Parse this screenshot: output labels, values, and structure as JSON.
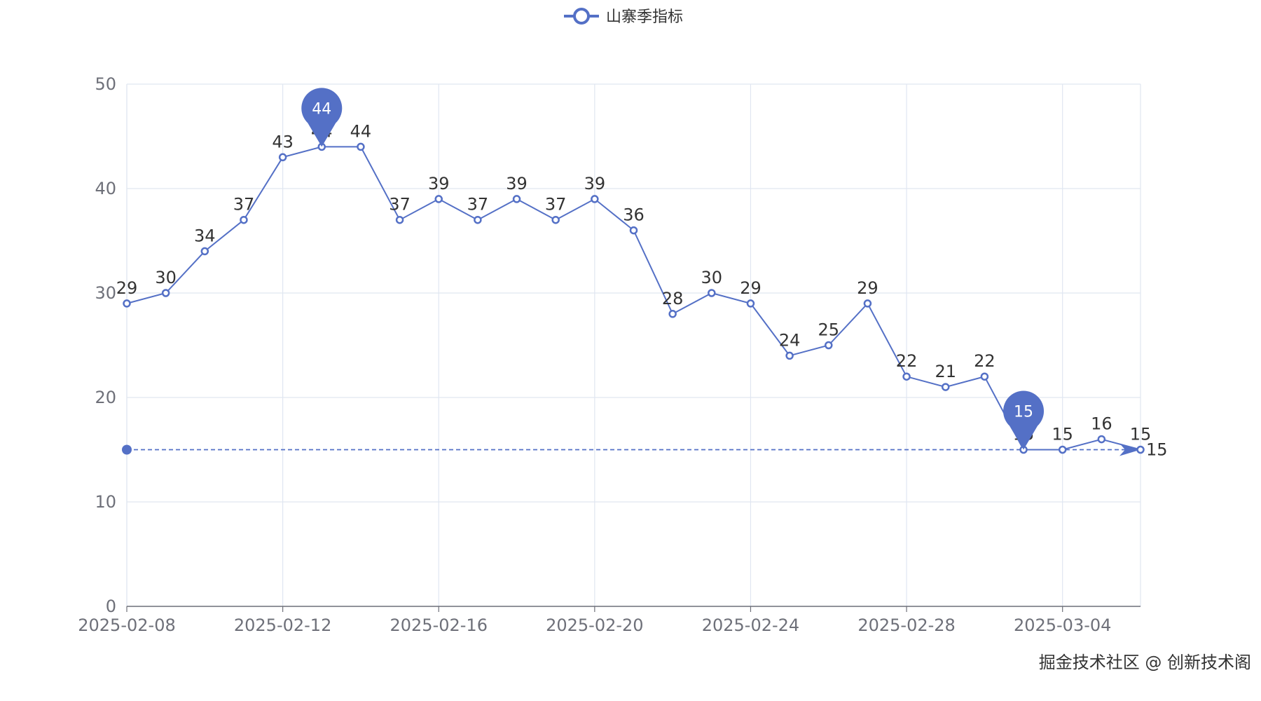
{
  "chart_data": {
    "type": "line",
    "legend": {
      "position": "top-center"
    },
    "series": [
      {
        "name": "山寨季指标",
        "color": "#5470c6",
        "x": [
          "2025-02-08",
          "2025-02-09",
          "2025-02-10",
          "2025-02-11",
          "2025-02-12",
          "2025-02-13",
          "2025-02-14",
          "2025-02-15",
          "2025-02-16",
          "2025-02-17",
          "2025-02-18",
          "2025-02-19",
          "2025-02-20",
          "2025-02-21",
          "2025-02-22",
          "2025-02-23",
          "2025-02-24",
          "2025-02-25",
          "2025-02-26",
          "2025-02-27",
          "2025-02-28",
          "2025-03-01",
          "2025-03-02",
          "2025-03-03",
          "2025-03-04",
          "2025-03-05",
          "2025-03-06"
        ],
        "values": [
          29,
          30,
          34,
          37,
          43,
          44,
          44,
          37,
          39,
          37,
          39,
          37,
          39,
          36,
          28,
          30,
          29,
          24,
          25,
          29,
          22,
          21,
          22,
          15,
          15,
          16,
          15
        ]
      }
    ],
    "x_tick_labels": [
      "2025-02-08",
      "2025-02-12",
      "2025-02-16",
      "2025-02-20",
      "2025-02-24",
      "2025-02-28",
      "2025-03-04"
    ],
    "ylim": [
      0,
      50
    ],
    "y_ticks": [
      0,
      10,
      20,
      30,
      40,
      50
    ],
    "grid": true,
    "mark_points": [
      {
        "type": "max",
        "x": "2025-02-13",
        "value": 44,
        "label": "44"
      },
      {
        "type": "min",
        "x": "2025-03-03",
        "value": 15,
        "label": "15"
      }
    ],
    "mark_line": {
      "type": "min",
      "value": 15,
      "label": "15"
    }
  },
  "watermark": "掘金技术社区 @ 创新技术阁"
}
